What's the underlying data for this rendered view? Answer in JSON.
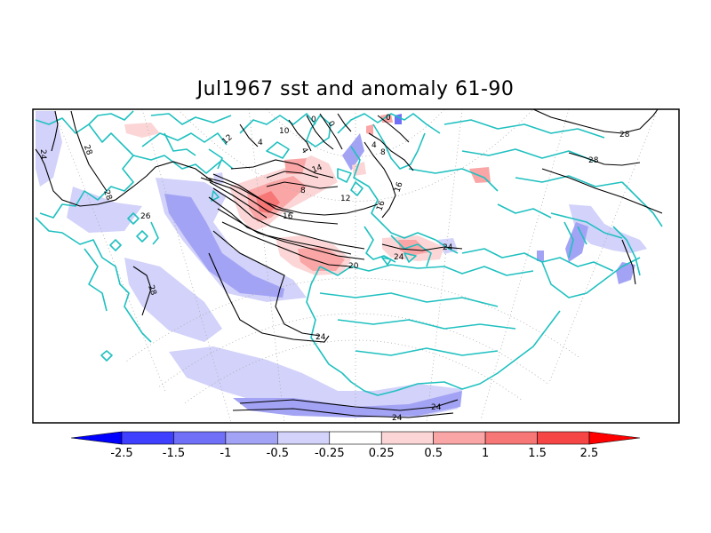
{
  "title": "Jul1967 sst and anomaly 61-90",
  "colors": {
    "land_outline": "#20c0c0",
    "contour_line": "#000000",
    "graticule": "#aaaaaa",
    "frame": "#000000"
  },
  "sst_contour_labels": [
    "24",
    "28",
    "28",
    "26",
    "28",
    "12",
    "4",
    "10",
    "0",
    "4",
    "0",
    "0",
    "4",
    "8",
    "14",
    "8",
    "12",
    "16",
    "20",
    "16",
    "16",
    "24",
    "24",
    "24",
    "28",
    "28",
    "24",
    "24"
  ],
  "anomaly_colorbar": {
    "colors": [
      "#0000ff",
      "#3f3fff",
      "#6f6ff7",
      "#a3a3f5",
      "#d2d2fa",
      "#ffffff",
      "#fcd6d6",
      "#faa6a6",
      "#f77676",
      "#f54545",
      "#ff0000"
    ],
    "tick_labels": [
      "-2.5",
      "-1.5",
      "-1",
      "-0.5",
      "-0.25",
      "0.25",
      "0.5",
      "1",
      "1.5",
      "2.5"
    ]
  }
}
